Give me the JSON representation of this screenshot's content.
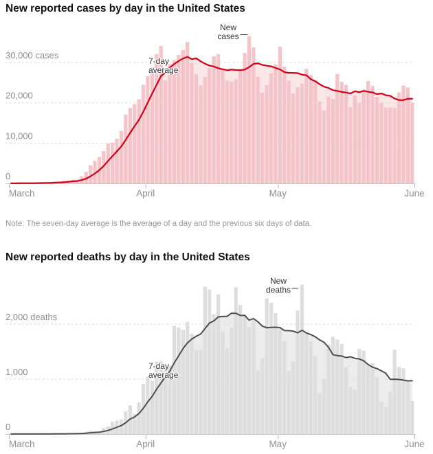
{
  "note": "Note: The seven-day average is the average of a day and the previous six days of data.",
  "chart_data": [
    {
      "type": "bar",
      "id": "cases",
      "title": "New reported cases by day in the United States",
      "ylabel": "cases",
      "ylim": [
        0,
        37000
      ],
      "grid": "dashed-horizontal",
      "y_ticks": [
        {
          "value": 0,
          "label": "0"
        },
        {
          "value": 10000,
          "label": "10,000"
        },
        {
          "value": 20000,
          "label": "20,000"
        },
        {
          "value": 30000,
          "label": "30,000 cases"
        }
      ],
      "x_ticks": [
        {
          "day": 0,
          "label": "March"
        },
        {
          "day": 31,
          "label": "April"
        },
        {
          "day": 61,
          "label": "May"
        },
        {
          "day": 92,
          "label": "June"
        }
      ],
      "annotations": {
        "avg_label": "7-day average",
        "peak_label": "New cases"
      },
      "colors": {
        "bar": "#f5c4c9",
        "area": "#f9e7e8",
        "line": "#d0021b"
      },
      "series_note": "daily new reported cases, March 1 - May 31, with 7-day average line",
      "values": [
        24,
        20,
        35,
        60,
        80,
        110,
        120,
        140,
        200,
        290,
        350,
        430,
        590,
        760,
        920,
        880,
        1750,
        2850,
        4490,
        5590,
        6570,
        8000,
        9900,
        10110,
        11080,
        12980,
        17060,
        18690,
        19640,
        20900,
        24450,
        26640,
        28810,
        32100,
        34100,
        25510,
        29600,
        30610,
        31900,
        33100,
        35100,
        29920,
        27080,
        24350,
        26390,
        28640,
        31540,
        32100,
        28120,
        25510,
        25280,
        25850,
        28340,
        32350,
        36500,
        33750,
        26510,
        22540,
        24350,
        27330,
        29510,
        33910,
        29010,
        25510,
        22340,
        23840,
        24810,
        28420,
        26930,
        25610,
        20320,
        18120,
        21540,
        20930,
        27140,
        25210,
        24440,
        18870,
        21840,
        19970,
        23290,
        25430,
        24190,
        21470,
        20030,
        18810,
        18870,
        18730,
        22580,
        24270,
        23810,
        20000
      ]
    },
    {
      "type": "bar",
      "id": "deaths",
      "title": "New reported deaths by day in the United States",
      "ylabel": "deaths",
      "ylim": [
        0,
        2800
      ],
      "grid": "dashed-horizontal",
      "y_ticks": [
        {
          "value": 0,
          "label": "0"
        },
        {
          "value": 1000,
          "label": "1,000"
        },
        {
          "value": 2000,
          "label": "2,000 deaths"
        }
      ],
      "x_ticks": [
        {
          "day": 0,
          "label": "March"
        },
        {
          "day": 31,
          "label": "April"
        },
        {
          "day": 61,
          "label": "May"
        },
        {
          "day": 92,
          "label": "June"
        }
      ],
      "annotations": {
        "avg_label": "7-day average",
        "peak_label": "New deaths"
      },
      "colors": {
        "bar": "#dedede",
        "area": "#ececec",
        "line": "#4d4d4d"
      },
      "series_note": "daily new reported deaths, March 1 - May 31, with 7-day average line",
      "values": [
        1,
        5,
        2,
        3,
        2,
        3,
        4,
        4,
        4,
        6,
        8,
        3,
        9,
        11,
        11,
        18,
        23,
        41,
        57,
        49,
        46,
        111,
        140,
        225,
        247,
        268,
        411,
        525,
        363,
        573,
        912,
        1050,
        970,
        1320,
        1330,
        1170,
        1260,
        1970,
        1940,
        1900,
        2040,
        1830,
        1530,
        1540,
        2680,
        2630,
        2180,
        2540,
        1870,
        1560,
        1940,
        2670,
        2350,
        2180,
        1950,
        2060,
        1160,
        1380,
        2470,
        2390,
        2200,
        1900,
        1690,
        1150,
        1320,
        2250,
        2720,
        1850,
        1690,
        1420,
        750,
        1010,
        1630,
        1770,
        1720,
        1640,
        1220,
        865,
        810,
        1550,
        1520,
        1260,
        1290,
        1040,
        590,
        505,
        775,
        1535,
        1225,
        1195,
        960,
        605
      ]
    }
  ]
}
